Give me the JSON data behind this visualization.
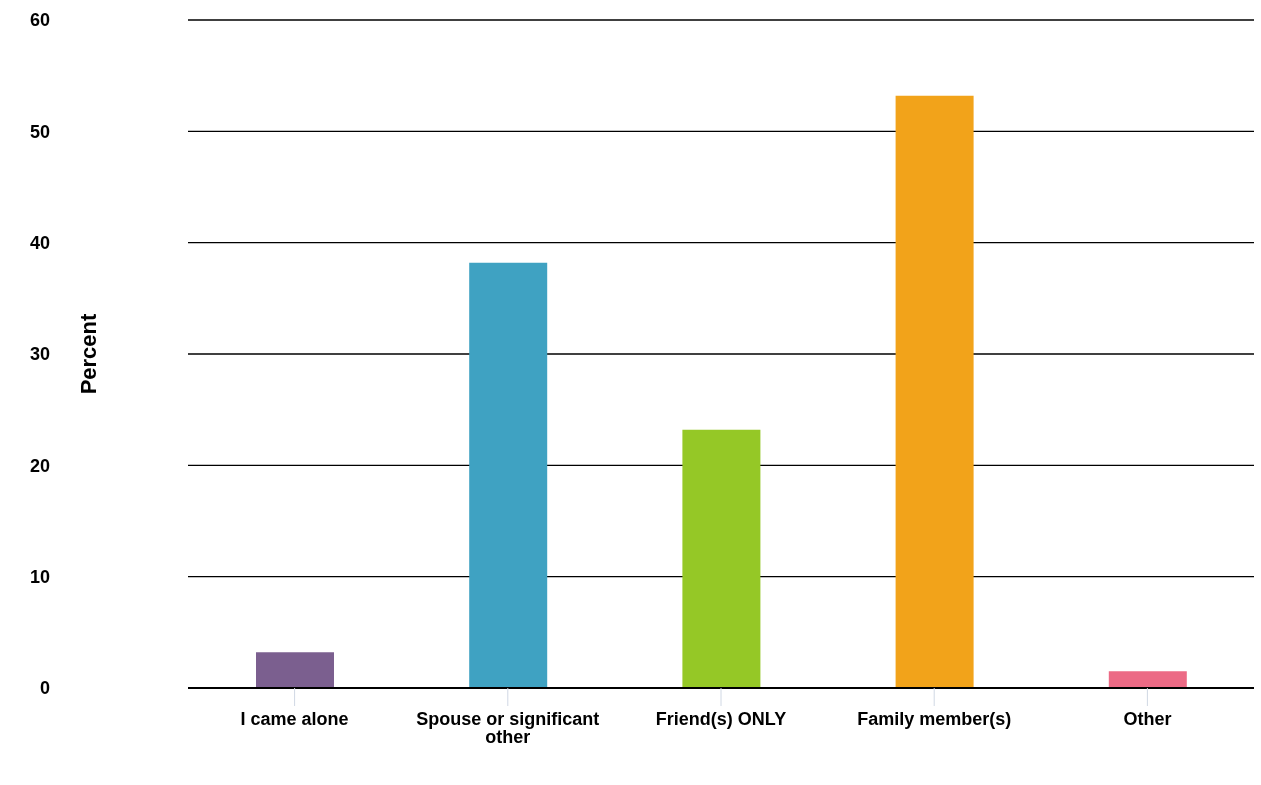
{
  "chart_data": {
    "type": "bar",
    "ylabel": "Percent",
    "categories": [
      "I came alone",
      "Spouse or significant other",
      "Friend(s) ONLY",
      "Family member(s)",
      "Other"
    ],
    "values": [
      3.2,
      38.2,
      23.2,
      53.2,
      1.5
    ],
    "colors": [
      "#7b5f8f",
      "#3fa2c2",
      "#95c826",
      "#f2a31a",
      "#ec6a85"
    ],
    "ylim": [
      0,
      60
    ],
    "yticks": [
      0,
      10,
      20,
      30,
      40,
      50,
      60
    ],
    "grid": "y",
    "legend": false
  }
}
